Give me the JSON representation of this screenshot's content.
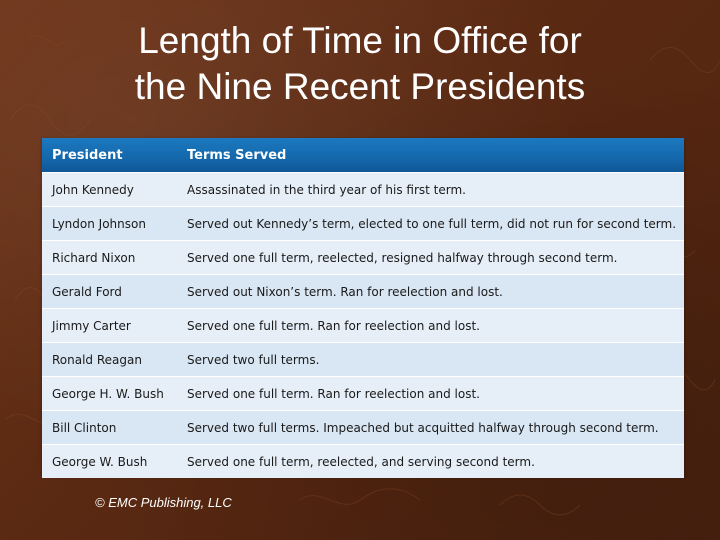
{
  "slide": {
    "title_line1": "Length of Time in Office for",
    "title_line2": "the Nine Recent Presidents",
    "copyright": "© EMC Publishing, LLC"
  },
  "table": {
    "headers": [
      "President",
      "Terms Served"
    ],
    "rows": [
      {
        "president": "John Kennedy",
        "terms": "Assassinated in the third year of his first term."
      },
      {
        "president": "Lyndon Johnson",
        "terms": "Served out Kennedy’s term, elected to one full term, did not run for second term."
      },
      {
        "president": "Richard Nixon",
        "terms": "Served one full term, reelected, resigned halfway through second term."
      },
      {
        "president": "Gerald Ford",
        "terms": "Served out Nixon’s term. Ran for reelection and lost."
      },
      {
        "president": "Jimmy Carter",
        "terms": "Served one full term. Ran for reelection and lost."
      },
      {
        "president": "Ronald Reagan",
        "terms": "Served two full terms."
      },
      {
        "president": "George H. W. Bush",
        "terms": "Served one full term. Ran for reelection and lost."
      },
      {
        "president": "Bill Clinton",
        "terms": "Served two full terms. Impeached but acquitted halfway through second term."
      },
      {
        "president": "George W. Bush",
        "terms": "Served one full term, reelected, and serving second term."
      }
    ]
  },
  "colors": {
    "background": "#5a2912",
    "header_blue": "#1467ab",
    "row_light": "#e6eff8",
    "row_dark": "#d9e6f3"
  }
}
